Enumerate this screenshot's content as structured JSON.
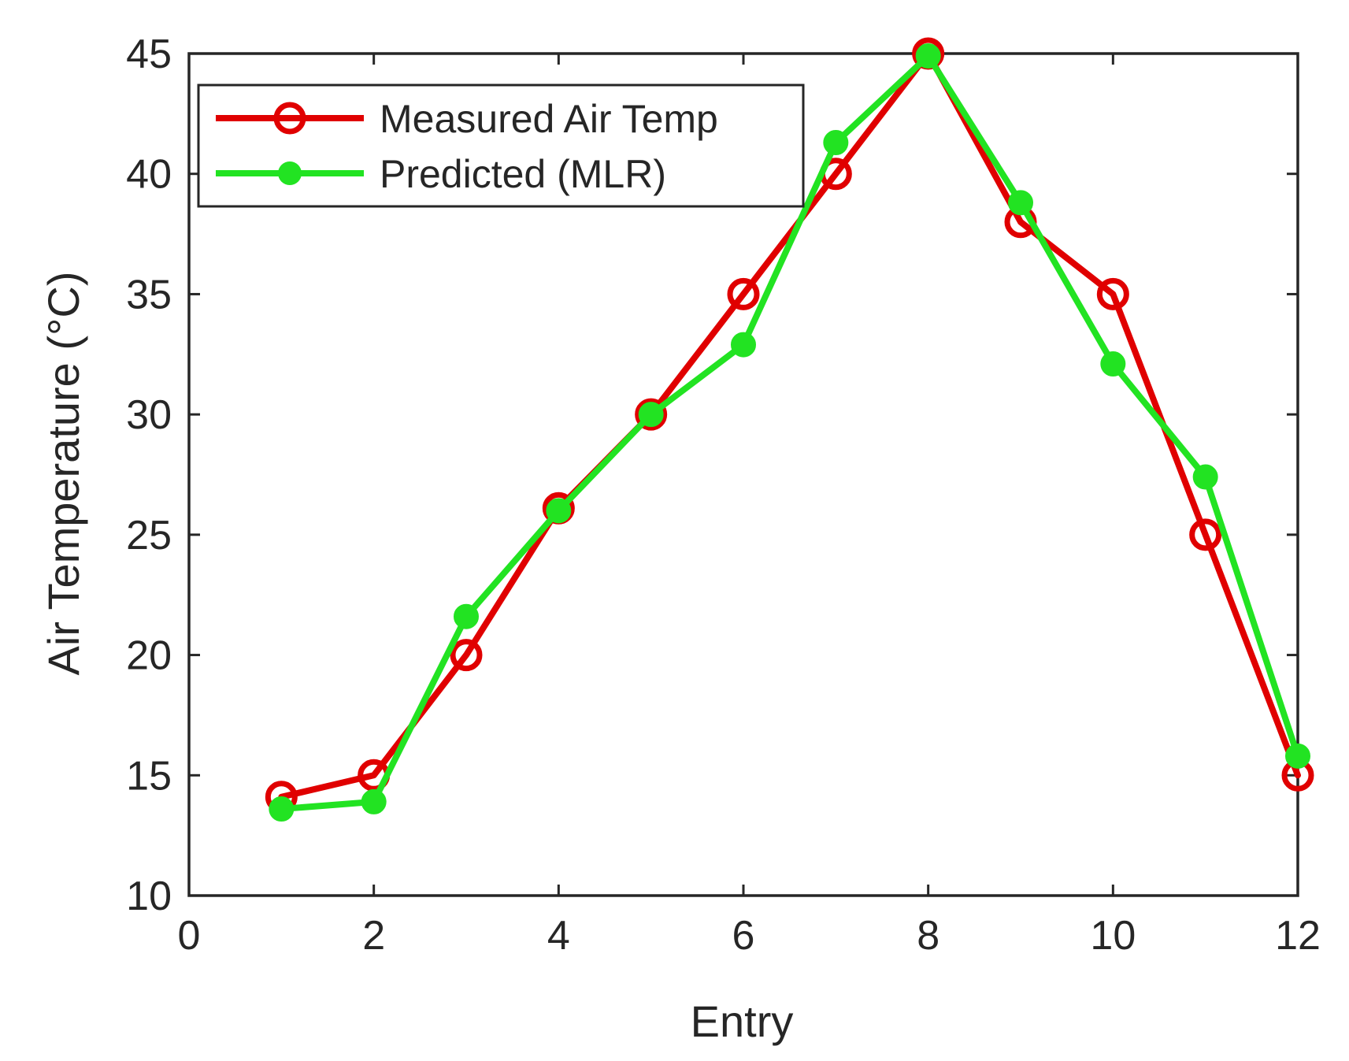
{
  "chart_data": {
    "type": "line",
    "title": "",
    "xlabel": "Entry",
    "ylabel": "Air Temperature (°C)",
    "xlim": [
      0,
      12
    ],
    "ylim": [
      10,
      45
    ],
    "xticks": [
      "0",
      "2",
      "4",
      "6",
      "8",
      "10",
      "12"
    ],
    "yticks": [
      "10",
      "15",
      "20",
      "25",
      "30",
      "35",
      "40",
      "45"
    ],
    "grid": true,
    "legend_position": "top-left",
    "x": [
      1,
      2,
      3,
      4,
      5,
      6,
      7,
      8,
      9,
      10,
      11,
      12
    ],
    "series": [
      {
        "name": "Measured Air Temp",
        "color": "#e00000",
        "marker": "open-circle",
        "values": [
          14.1,
          15.0,
          20.0,
          26.1,
          30.0,
          35.0,
          40.0,
          45.0,
          38.0,
          35.0,
          25.0,
          15.0
        ]
      },
      {
        "name": "Predicted (MLR)",
        "color": "#22e322",
        "marker": "filled-circle",
        "values": [
          13.6,
          13.9,
          21.6,
          26.0,
          30.0,
          32.9,
          41.3,
          44.9,
          38.8,
          32.1,
          27.4,
          15.8
        ]
      }
    ]
  }
}
